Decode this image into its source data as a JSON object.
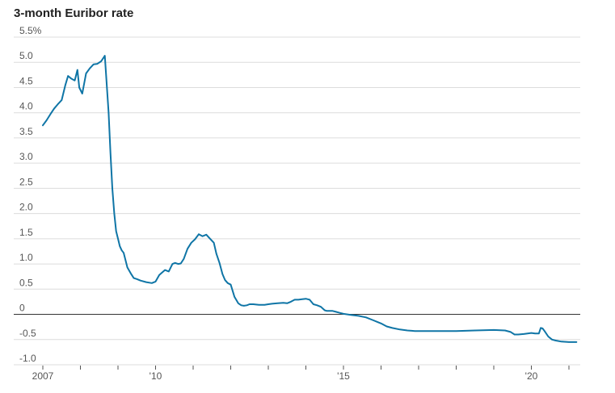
{
  "title": "3-month Euribor rate",
  "colors": {
    "line": "#0f75a6",
    "grid": "#dcdcdc",
    "zero_line": "#333333"
  },
  "chart_data": {
    "type": "line",
    "title": "3-month Euribor rate",
    "xlabel": "",
    "ylabel": "",
    "ylim": [
      -1.0,
      5.5
    ],
    "xlim": [
      2007.0,
      2021.4
    ],
    "grid": true,
    "y_ticks": [
      {
        "value": 5.5,
        "label": "5.5%"
      },
      {
        "value": 5.0,
        "label": "5.0"
      },
      {
        "value": 4.5,
        "label": "4.5"
      },
      {
        "value": 4.0,
        "label": "4.0"
      },
      {
        "value": 3.5,
        "label": "3.5"
      },
      {
        "value": 3.0,
        "label": "3.0"
      },
      {
        "value": 2.5,
        "label": "2.5"
      },
      {
        "value": 2.0,
        "label": "2.0"
      },
      {
        "value": 1.5,
        "label": "1.5"
      },
      {
        "value": 1.0,
        "label": "1.0"
      },
      {
        "value": 0.5,
        "label": "0.5"
      },
      {
        "value": 0.0,
        "label": "0"
      },
      {
        "value": -0.5,
        "label": "-0.5"
      },
      {
        "value": -1.0,
        "label": "-1.0"
      }
    ],
    "x_ticks": [
      {
        "value": 2007,
        "label": "2007"
      },
      {
        "value": 2008,
        "label": ""
      },
      {
        "value": 2009,
        "label": ""
      },
      {
        "value": 2010,
        "label": "'10"
      },
      {
        "value": 2011,
        "label": ""
      },
      {
        "value": 2012,
        "label": ""
      },
      {
        "value": 2013,
        "label": ""
      },
      {
        "value": 2014,
        "label": ""
      },
      {
        "value": 2015,
        "label": "'15"
      },
      {
        "value": 2016,
        "label": ""
      },
      {
        "value": 2017,
        "label": ""
      },
      {
        "value": 2018,
        "label": ""
      },
      {
        "value": 2019,
        "label": ""
      },
      {
        "value": 2020,
        "label": "'20"
      },
      {
        "value": 2021,
        "label": ""
      }
    ],
    "series": [
      {
        "x": [
          2007.0,
          2007.1,
          2007.2,
          2007.3,
          2007.4,
          2007.5,
          2007.6,
          2007.67,
          2007.75,
          2007.85,
          2007.92,
          2007.97,
          2008.05,
          2008.15,
          2008.25,
          2008.35,
          2008.45,
          2008.55,
          2008.65,
          2008.75,
          2008.8,
          2008.85,
          2008.9,
          2008.95,
          2009.0,
          2009.05,
          2009.1,
          2009.15,
          2009.25,
          2009.35,
          2009.42,
          2009.5,
          2009.6,
          2009.75,
          2009.9,
          2010.0,
          2010.1,
          2010.25,
          2010.35,
          2010.45,
          2010.52,
          2010.6,
          2010.67,
          2010.75,
          2010.85,
          2010.95,
          2011.05,
          2011.15,
          2011.25,
          2011.35,
          2011.45,
          2011.55,
          2011.62,
          2011.7,
          2011.78,
          2011.85,
          2011.92,
          2012.0,
          2012.1,
          2012.2,
          2012.28,
          2012.35,
          2012.43,
          2012.5,
          2012.6,
          2012.75,
          2012.9,
          2013.0,
          2013.1,
          2013.25,
          2013.4,
          2013.5,
          2013.6,
          2013.7,
          2013.8,
          2013.9,
          2014.0,
          2014.1,
          2014.2,
          2014.3,
          2014.4,
          2014.5,
          2014.55,
          2014.6,
          2014.7,
          2014.8,
          2014.9,
          2015.0,
          2015.2,
          2015.4,
          2015.6,
          2015.8,
          2015.9,
          2016.0,
          2016.15,
          2016.3,
          2016.5,
          2016.7,
          2016.9,
          2017.0,
          2017.5,
          2018.0,
          2018.5,
          2019.0,
          2019.3,
          2019.45,
          2019.55,
          2019.65,
          2019.8,
          2020.0,
          2020.1,
          2020.2,
          2020.25,
          2020.3,
          2020.35,
          2020.45,
          2020.55,
          2020.65,
          2020.8,
          2021.0,
          2021.2
        ],
        "values": [
          3.75,
          3.85,
          3.97,
          4.08,
          4.17,
          4.25,
          4.55,
          4.73,
          4.68,
          4.64,
          4.85,
          4.5,
          4.38,
          4.78,
          4.88,
          4.96,
          4.97,
          5.02,
          5.13,
          4.0,
          3.2,
          2.5,
          2.0,
          1.65,
          1.5,
          1.35,
          1.27,
          1.22,
          0.93,
          0.8,
          0.72,
          0.7,
          0.67,
          0.64,
          0.62,
          0.65,
          0.78,
          0.88,
          0.85,
          1.0,
          1.02,
          1.0,
          1.01,
          1.1,
          1.3,
          1.42,
          1.49,
          1.59,
          1.55,
          1.58,
          1.5,
          1.42,
          1.2,
          1.02,
          0.8,
          0.68,
          0.62,
          0.59,
          0.35,
          0.22,
          0.18,
          0.17,
          0.18,
          0.2,
          0.2,
          0.19,
          0.19,
          0.2,
          0.21,
          0.22,
          0.23,
          0.22,
          0.25,
          0.29,
          0.29,
          0.3,
          0.31,
          0.29,
          0.2,
          0.18,
          0.15,
          0.08,
          0.07,
          0.07,
          0.07,
          0.05,
          0.03,
          0.01,
          -0.01,
          -0.03,
          -0.06,
          -0.12,
          -0.15,
          -0.18,
          -0.24,
          -0.27,
          -0.3,
          -0.32,
          -0.33,
          -0.33,
          -0.33,
          -0.33,
          -0.32,
          -0.31,
          -0.32,
          -0.35,
          -0.4,
          -0.4,
          -0.39,
          -0.37,
          -0.38,
          -0.38,
          -0.27,
          -0.28,
          -0.33,
          -0.44,
          -0.5,
          -0.52,
          -0.54,
          -0.55,
          -0.55
        ]
      }
    ]
  }
}
